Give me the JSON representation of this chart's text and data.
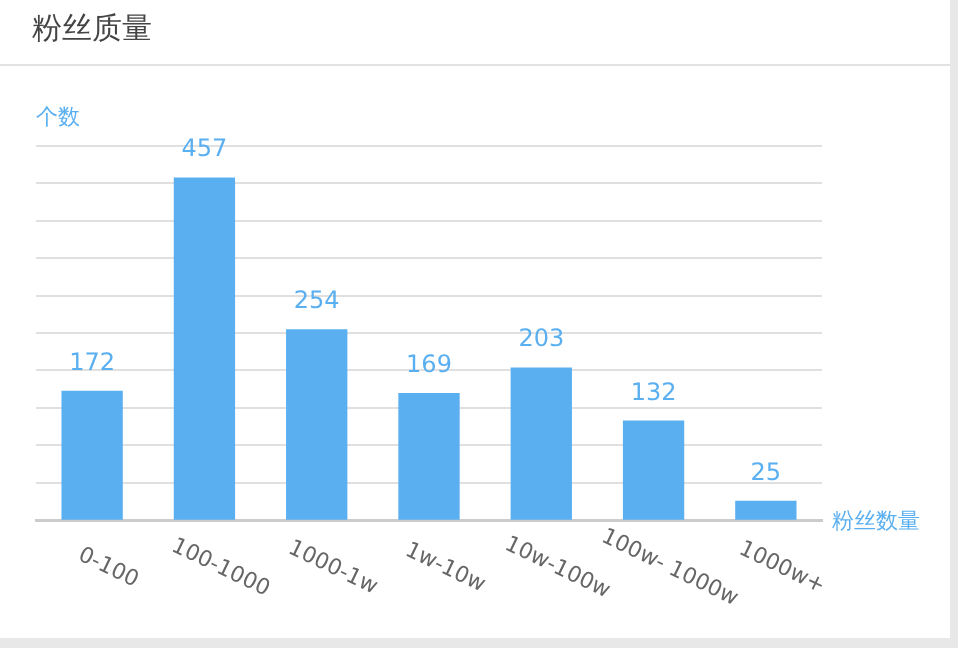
{
  "chart_data": {
    "type": "bar",
    "title": "粉丝质量",
    "ylabel": "个数",
    "xlabel": "粉丝数量",
    "categories": [
      "0-100",
      "100-1000",
      "1000-1w",
      "1w-10w",
      "10w-100w",
      "100w- 1000w",
      "1000w+"
    ],
    "values": [
      172,
      457,
      254,
      169,
      203,
      132,
      25
    ],
    "color": "#5aaff0",
    "grid": "y",
    "tick_labels": "x",
    "data_labels": true,
    "legend": false
  }
}
